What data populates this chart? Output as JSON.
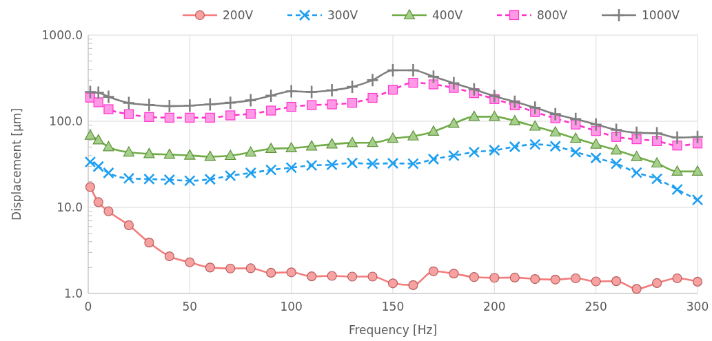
{
  "chart_data": {
    "type": "line",
    "xlabel": "Frequency [Hz]",
    "ylabel": "Displacement  [µm]",
    "x": [
      1,
      5,
      10,
      20,
      30,
      40,
      50,
      60,
      70,
      80,
      90,
      100,
      110,
      120,
      130,
      140,
      150,
      160,
      170,
      180,
      190,
      200,
      210,
      220,
      230,
      240,
      250,
      260,
      270,
      280,
      290,
      300
    ],
    "series": [
      {
        "name": "200V",
        "color": "#f47c7c",
        "marker": "circle",
        "line_style": "solid",
        "values": [
          17.2,
          11.5,
          9.0,
          6.2,
          3.9,
          2.7,
          2.3,
          2.0,
          1.95,
          1.96,
          1.74,
          1.76,
          1.58,
          1.6,
          1.57,
          1.57,
          1.31,
          1.25,
          1.81,
          1.7,
          1.55,
          1.52,
          1.53,
          1.47,
          1.45,
          1.5,
          1.38,
          1.39,
          1.13,
          1.32,
          1.5,
          1.37
        ]
      },
      {
        "name": "300V",
        "color": "#1e9ff0",
        "marker": "cross",
        "line_style": "dashed",
        "values": [
          33.7,
          29.8,
          25.1,
          21.7,
          21.3,
          20.9,
          20.4,
          21.2,
          23.3,
          25.1,
          27.2,
          28.9,
          30.7,
          31.3,
          32.7,
          32.1,
          32.5,
          32.1,
          36.3,
          39.9,
          43.8,
          46.1,
          50.6,
          53.9,
          51.3,
          43.8,
          37.5,
          32.1,
          25.3,
          21.4,
          16.1,
          12.2
        ]
      },
      {
        "name": "400V",
        "color": "#70ad47",
        "marker": "triangle",
        "line_style": "solid",
        "values": [
          68.4,
          60.4,
          50.3,
          43.6,
          41.8,
          41.0,
          40.1,
          38.8,
          39.8,
          43.6,
          47.9,
          48.8,
          51.2,
          54.1,
          56.1,
          56.3,
          63,
          67,
          76,
          94,
          113,
          113,
          100.7,
          87.1,
          74.5,
          63,
          53.9,
          46.1,
          38.7,
          32.5,
          26.1,
          26.1
        ]
      },
      {
        "name": "800V",
        "color": "#ff33cc",
        "marker": "square",
        "line_style": "dashed",
        "values": [
          188,
          166,
          138,
          121,
          112,
          110,
          110,
          110,
          117,
          122,
          133,
          147,
          154,
          157,
          164,
          187,
          232,
          280,
          268,
          244,
          212,
          181,
          153,
          128,
          108,
          91.6,
          76.9,
          65.8,
          61.8,
          58.8,
          52.2,
          55.2
        ]
      },
      {
        "name": "1000V",
        "color": "#7f7f7f",
        "marker": "plus",
        "line_style": "solid",
        "values": [
          219,
          215,
          192,
          163,
          155,
          150,
          152,
          157,
          164,
          175,
          198,
          223,
          219,
          229,
          251,
          300,
          391,
          391,
          330,
          277,
          234,
          196,
          168,
          144,
          121,
          106,
          91.6,
          79.4,
          73.6,
          72.3,
          64.6,
          65.8
        ]
      }
    ],
    "xlim": [
      0,
      300
    ],
    "xticks": [
      0,
      50,
      100,
      150,
      200,
      250,
      300
    ],
    "ylim": [
      1,
      1000
    ],
    "yticks": [
      {
        "value": 1,
        "label": "1.0"
      },
      {
        "value": 10,
        "label": "10.0"
      },
      {
        "value": 100,
        "label": "100.0"
      },
      {
        "value": 1000,
        "label": "1000.0"
      }
    ],
    "log": "y",
    "grid": true,
    "legend": "top right"
  }
}
